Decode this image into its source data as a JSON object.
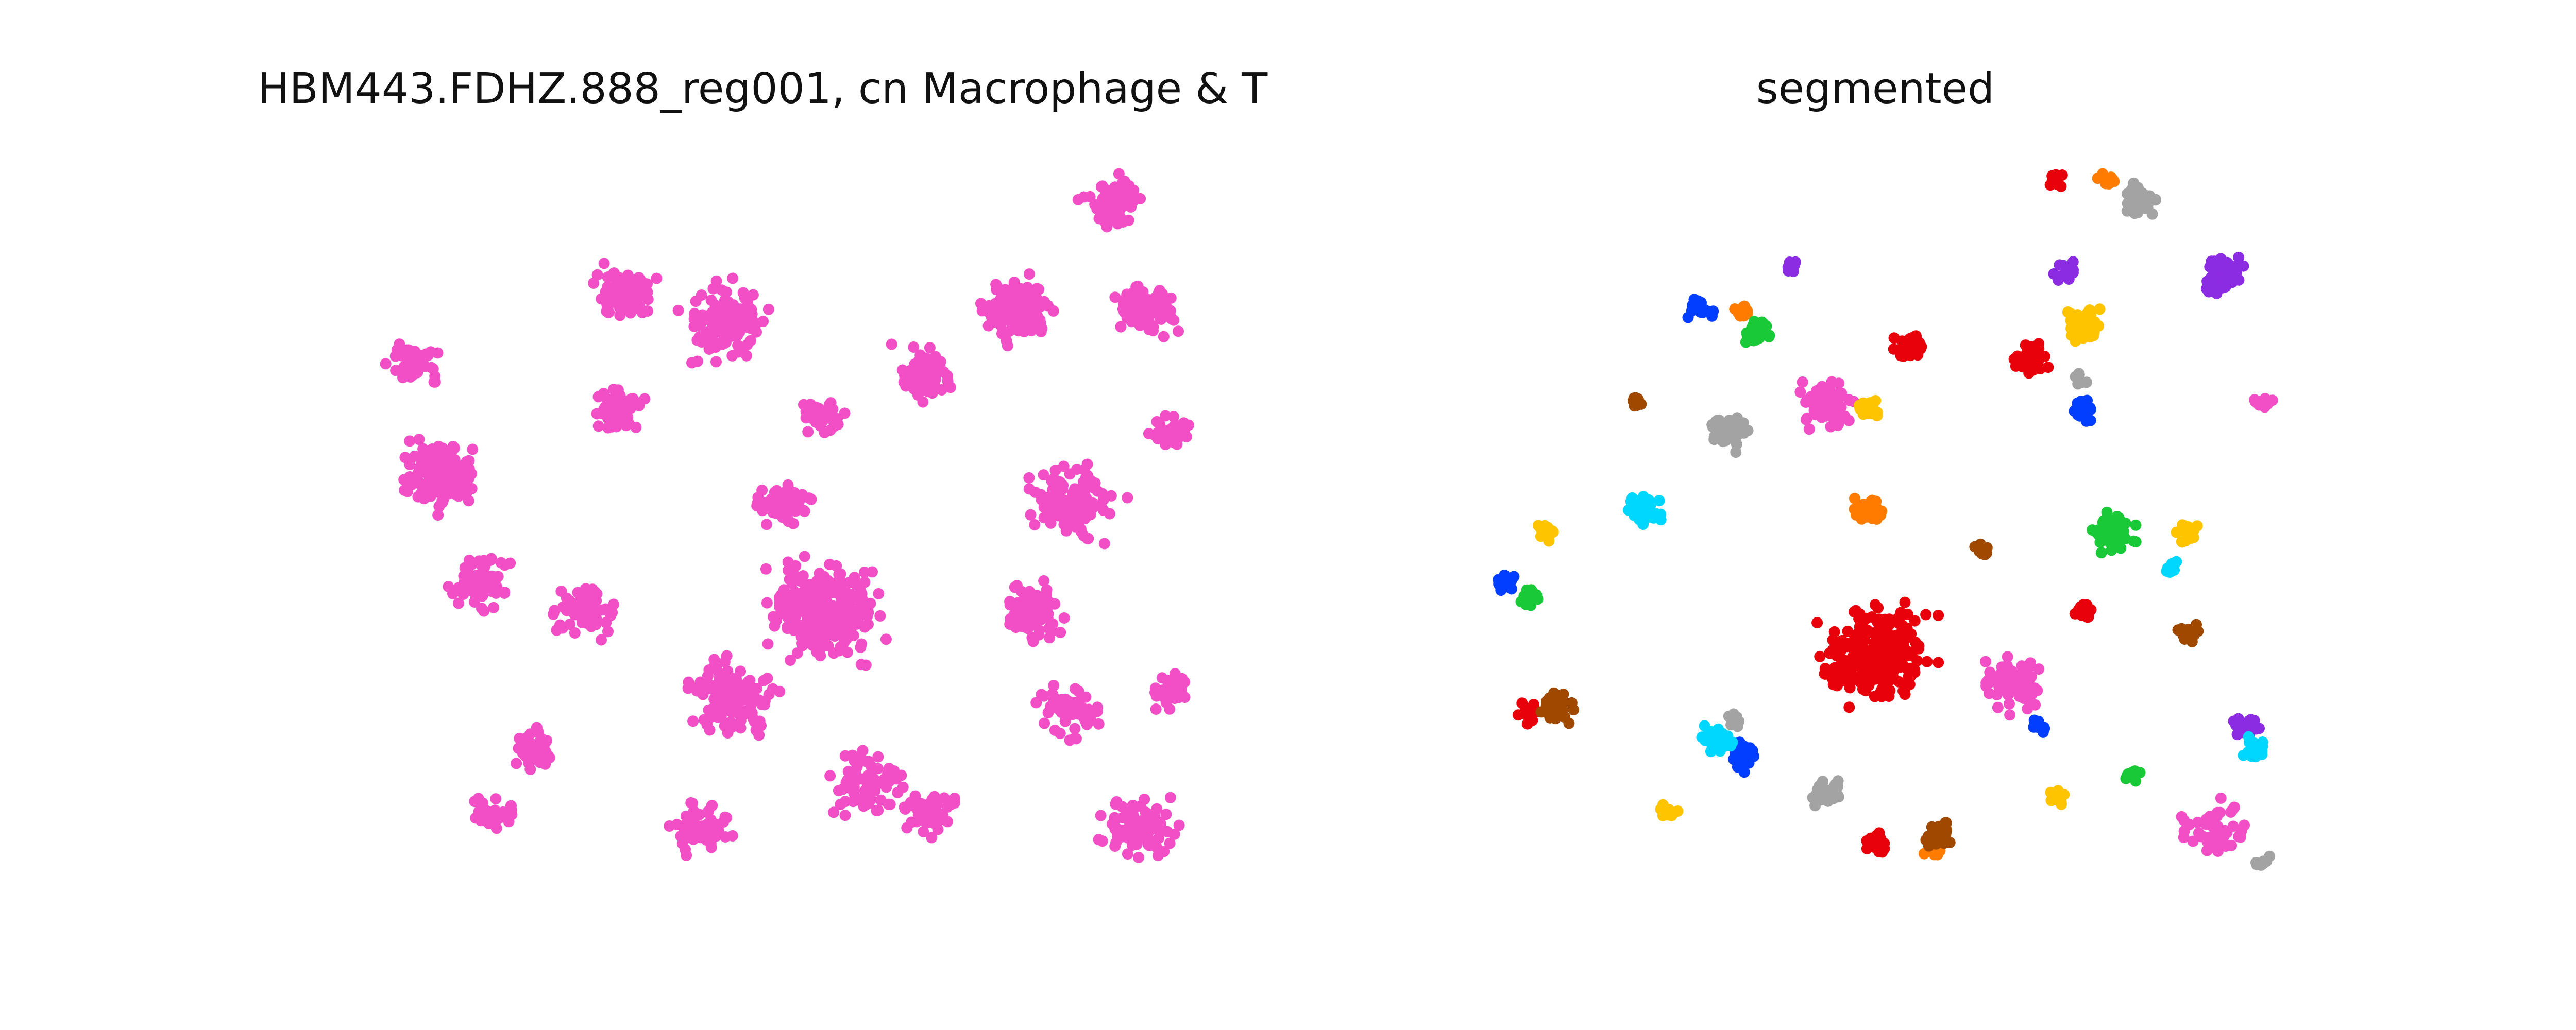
{
  "chart_data": [
    {
      "type": "scatter",
      "title": "HBM443.FDHZ.888_reg001, cn Macrophage & T",
      "axes_visible": false,
      "series": [
        {
          "color": "#f24fc6",
          "clusters": [
            {
              "cx": 0.08,
              "cy": 0.43,
              "r": 0.065,
              "n": 150
            },
            {
              "cx": 0.05,
              "cy": 0.28,
              "r": 0.045,
              "n": 60
            },
            {
              "cx": 0.13,
              "cy": 0.58,
              "r": 0.05,
              "n": 70
            },
            {
              "cx": 0.26,
              "cy": 0.62,
              "r": 0.05,
              "n": 60
            },
            {
              "cx": 0.2,
              "cy": 0.81,
              "r": 0.035,
              "n": 50
            },
            {
              "cx": 0.31,
              "cy": 0.18,
              "r": 0.05,
              "n": 80
            },
            {
              "cx": 0.43,
              "cy": 0.22,
              "r": 0.07,
              "n": 120
            },
            {
              "cx": 0.3,
              "cy": 0.34,
              "r": 0.04,
              "n": 60
            },
            {
              "cx": 0.5,
              "cy": 0.47,
              "r": 0.04,
              "n": 70
            },
            {
              "cx": 0.55,
              "cy": 0.62,
              "r": 0.09,
              "n": 260
            },
            {
              "cx": 0.44,
              "cy": 0.74,
              "r": 0.07,
              "n": 130
            },
            {
              "cx": 0.4,
              "cy": 0.92,
              "r": 0.05,
              "n": 60
            },
            {
              "cx": 0.6,
              "cy": 0.86,
              "r": 0.06,
              "n": 80
            },
            {
              "cx": 0.67,
              "cy": 0.29,
              "r": 0.05,
              "n": 70
            },
            {
              "cx": 0.78,
              "cy": 0.2,
              "r": 0.06,
              "n": 110
            },
            {
              "cx": 0.85,
              "cy": 0.47,
              "r": 0.07,
              "n": 120
            },
            {
              "cx": 0.8,
              "cy": 0.62,
              "r": 0.05,
              "n": 90
            },
            {
              "cx": 0.9,
              "cy": 0.05,
              "r": 0.045,
              "n": 80
            },
            {
              "cx": 0.94,
              "cy": 0.2,
              "r": 0.05,
              "n": 80
            },
            {
              "cx": 0.97,
              "cy": 0.37,
              "r": 0.03,
              "n": 40
            },
            {
              "cx": 0.97,
              "cy": 0.73,
              "r": 0.03,
              "n": 45
            },
            {
              "cx": 0.85,
              "cy": 0.76,
              "r": 0.05,
              "n": 60
            },
            {
              "cx": 0.93,
              "cy": 0.92,
              "r": 0.06,
              "n": 80
            },
            {
              "cx": 0.68,
              "cy": 0.9,
              "r": 0.04,
              "n": 50
            },
            {
              "cx": 0.15,
              "cy": 0.9,
              "r": 0.03,
              "n": 30
            },
            {
              "cx": 0.55,
              "cy": 0.35,
              "r": 0.035,
              "n": 40
            }
          ]
        }
      ]
    },
    {
      "type": "scatter",
      "title": "segmented",
      "axes_visible": false,
      "series": [
        {
          "color": "#e8000b",
          "clusters": [
            {
              "cx": 0.5,
              "cy": 0.68,
              "r": 0.09,
              "n": 260
            },
            {
              "cx": 0.54,
              "cy": 0.25,
              "r": 0.025,
              "n": 40
            },
            {
              "cx": 0.69,
              "cy": 0.27,
              "r": 0.03,
              "n": 40
            },
            {
              "cx": 0.08,
              "cy": 0.76,
              "r": 0.02,
              "n": 20
            },
            {
              "cx": 0.5,
              "cy": 0.94,
              "r": 0.02,
              "n": 20
            },
            {
              "cx": 0.75,
              "cy": 0.62,
              "r": 0.02,
              "n": 20
            },
            {
              "cx": 0.72,
              "cy": 0.02,
              "r": 0.015,
              "n": 12
            }
          ]
        },
        {
          "color": "#f24fc6",
          "clusters": [
            {
              "cx": 0.44,
              "cy": 0.33,
              "r": 0.04,
              "n": 80
            },
            {
              "cx": 0.67,
              "cy": 0.72,
              "r": 0.045,
              "n": 80
            },
            {
              "cx": 0.91,
              "cy": 0.92,
              "r": 0.05,
              "n": 50
            },
            {
              "cx": 0.97,
              "cy": 0.33,
              "r": 0.015,
              "n": 12
            }
          ]
        },
        {
          "color": "#a3a3a3",
          "clusters": [
            {
              "cx": 0.32,
              "cy": 0.37,
              "r": 0.03,
              "n": 55
            },
            {
              "cx": 0.82,
              "cy": 0.05,
              "r": 0.03,
              "n": 45
            },
            {
              "cx": 0.44,
              "cy": 0.87,
              "r": 0.025,
              "n": 30
            },
            {
              "cx": 0.33,
              "cy": 0.77,
              "r": 0.015,
              "n": 12
            },
            {
              "cx": 0.75,
              "cy": 0.3,
              "r": 0.015,
              "n": 10
            },
            {
              "cx": 0.97,
              "cy": 0.97,
              "r": 0.012,
              "n": 10
            }
          ]
        },
        {
          "color": "#ff7c00",
          "clusters": [
            {
              "cx": 0.49,
              "cy": 0.48,
              "r": 0.025,
              "n": 45
            },
            {
              "cx": 0.78,
              "cy": 0.02,
              "r": 0.015,
              "n": 12
            },
            {
              "cx": 0.57,
              "cy": 0.95,
              "r": 0.015,
              "n": 12
            },
            {
              "cx": 0.34,
              "cy": 0.2,
              "r": 0.015,
              "n": 12
            }
          ]
        },
        {
          "color": "#8b2be2",
          "clusters": [
            {
              "cx": 0.92,
              "cy": 0.15,
              "r": 0.035,
              "n": 50
            },
            {
              "cx": 0.95,
              "cy": 0.78,
              "r": 0.02,
              "n": 25
            },
            {
              "cx": 0.73,
              "cy": 0.15,
              "r": 0.02,
              "n": 15
            },
            {
              "cx": 0.4,
              "cy": 0.14,
              "r": 0.012,
              "n": 8
            }
          ]
        },
        {
          "color": "#023eff",
          "clusters": [
            {
              "cx": 0.34,
              "cy": 0.82,
              "r": 0.025,
              "n": 40
            },
            {
              "cx": 0.75,
              "cy": 0.34,
              "r": 0.02,
              "n": 30
            },
            {
              "cx": 0.29,
              "cy": 0.2,
              "r": 0.02,
              "n": 20
            },
            {
              "cx": 0.05,
              "cy": 0.58,
              "r": 0.015,
              "n": 15
            },
            {
              "cx": 0.7,
              "cy": 0.78,
              "r": 0.015,
              "n": 15
            }
          ]
        },
        {
          "color": "#1ac938",
          "clusters": [
            {
              "cx": 0.79,
              "cy": 0.51,
              "r": 0.035,
              "n": 55
            },
            {
              "cx": 0.36,
              "cy": 0.23,
              "r": 0.025,
              "n": 30
            },
            {
              "cx": 0.08,
              "cy": 0.6,
              "r": 0.015,
              "n": 15
            },
            {
              "cx": 0.81,
              "cy": 0.85,
              "r": 0.015,
              "n": 12
            }
          ]
        },
        {
          "color": "#00d7ff",
          "clusters": [
            {
              "cx": 0.22,
              "cy": 0.48,
              "r": 0.03,
              "n": 40
            },
            {
              "cx": 0.31,
              "cy": 0.8,
              "r": 0.025,
              "n": 30
            },
            {
              "cx": 0.96,
              "cy": 0.81,
              "r": 0.02,
              "n": 25
            },
            {
              "cx": 0.86,
              "cy": 0.56,
              "r": 0.015,
              "n": 12
            }
          ]
        },
        {
          "color": "#ffc400",
          "clusters": [
            {
              "cx": 0.75,
              "cy": 0.22,
              "r": 0.03,
              "n": 40
            },
            {
              "cx": 0.88,
              "cy": 0.51,
              "r": 0.02,
              "n": 25
            },
            {
              "cx": 0.49,
              "cy": 0.34,
              "r": 0.02,
              "n": 25
            },
            {
              "cx": 0.1,
              "cy": 0.51,
              "r": 0.015,
              "n": 15
            },
            {
              "cx": 0.25,
              "cy": 0.9,
              "r": 0.015,
              "n": 15
            },
            {
              "cx": 0.72,
              "cy": 0.88,
              "r": 0.015,
              "n": 12
            }
          ]
        },
        {
          "color": "#9f4800",
          "clusters": [
            {
              "cx": 0.11,
              "cy": 0.75,
              "r": 0.03,
              "n": 40
            },
            {
              "cx": 0.58,
              "cy": 0.93,
              "r": 0.025,
              "n": 35
            },
            {
              "cx": 0.88,
              "cy": 0.65,
              "r": 0.02,
              "n": 25
            },
            {
              "cx": 0.63,
              "cy": 0.53,
              "r": 0.015,
              "n": 15
            },
            {
              "cx": 0.21,
              "cy": 0.33,
              "r": 0.012,
              "n": 10
            }
          ]
        }
      ]
    }
  ]
}
